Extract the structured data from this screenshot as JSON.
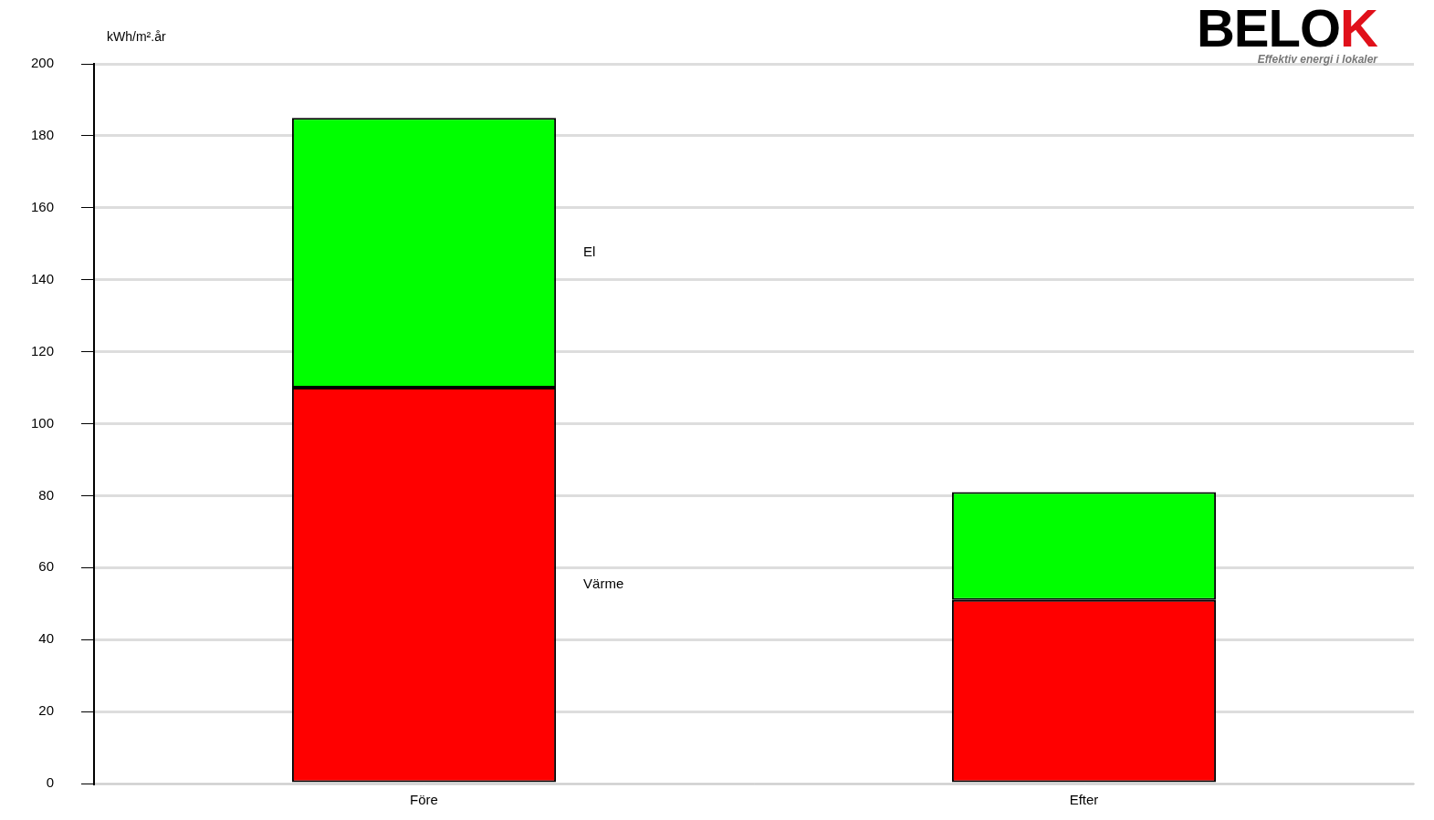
{
  "chart_data": {
    "type": "bar",
    "stacked": true,
    "y_label": "kWh/m².år",
    "categories": [
      "Före",
      "Efter"
    ],
    "series": [
      {
        "name": "Värme",
        "color": "#ff0000",
        "values": [
          110,
          51
        ]
      },
      {
        "name": "El",
        "color": "#00ff00",
        "values": [
          75,
          30
        ]
      }
    ],
    "ylim": [
      0,
      200
    ],
    "yticks": [
      0,
      20,
      40,
      60,
      80,
      100,
      120,
      140,
      160,
      180,
      200
    ],
    "grid": true,
    "logo": {
      "text": "BELOK",
      "tagline": "Effektiv energi i lokaler"
    }
  }
}
